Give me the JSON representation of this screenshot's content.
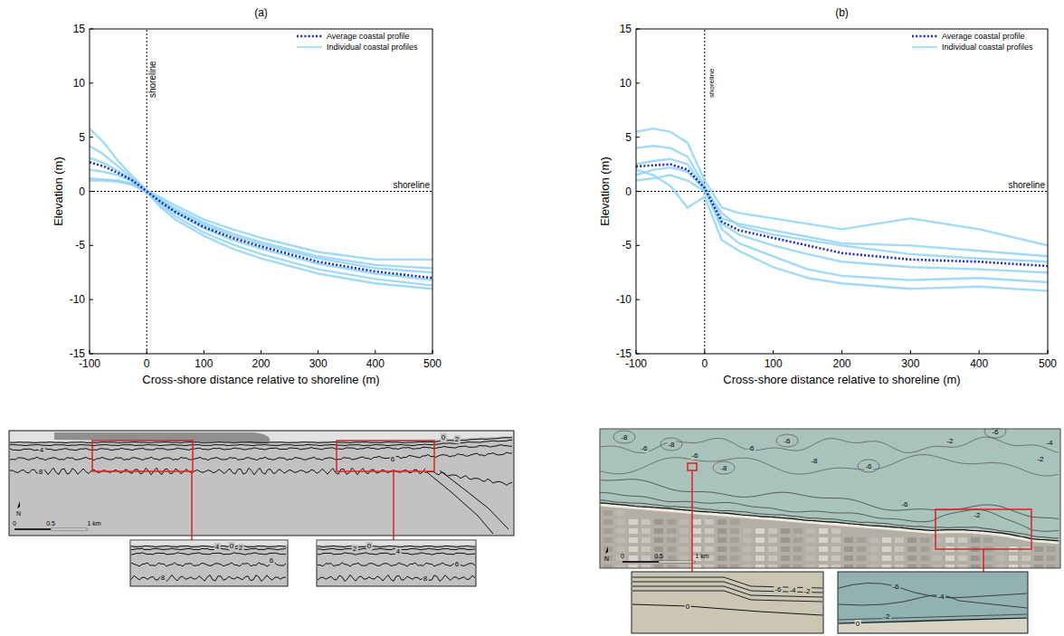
{
  "chart_data": [
    {
      "type": "line",
      "title": "(a)",
      "x_label": "Cross-shore distance relative to shoreline (m)",
      "y_label": "Elevation (m)",
      "x": [
        -100,
        -75,
        -50,
        -25,
        0,
        25,
        50,
        100,
        150,
        200,
        300,
        400,
        500
      ],
      "xlim": [
        -100,
        500
      ],
      "xticks": [
        -100,
        0,
        100,
        200,
        300,
        400,
        500
      ],
      "ylim": [
        -15,
        15
      ],
      "yticks": [
        -15,
        -10,
        -5,
        0,
        5,
        10,
        15
      ],
      "grid": false,
      "legend": "upper right",
      "annotations": [
        {
          "text": "shoreline",
          "x": 0
        },
        {
          "text": "shoreline",
          "y": 0
        }
      ],
      "series": [
        {
          "name": "Average coastal profile",
          "color": "#1a2bbf",
          "line_style": "dotted",
          "values": [
            2.7,
            2.3,
            1.7,
            1.0,
            0,
            -1.0,
            -1.9,
            -3.3,
            -4.3,
            -5.1,
            -6.5,
            -7.4,
            -8.0
          ]
        },
        {
          "name": "Individual coastal profiles",
          "color": "#8fd3f4",
          "line_style": "solid",
          "values": [
            [
              5.8,
              4.5,
              2.8,
              1.4,
              0.1,
              -0.6,
              -1.3,
              -2.6,
              -3.5,
              -4.3,
              -5.6,
              -6.3,
              -6.3
            ],
            [
              4.2,
              3.4,
              2.3,
              1.2,
              0,
              -0.8,
              -1.6,
              -2.9,
              -3.9,
              -4.7,
              -6.0,
              -6.8,
              -7.1
            ],
            [
              2.0,
              1.8,
              1.5,
              0.9,
              0,
              -1.1,
              -2.0,
              -3.4,
              -4.5,
              -5.3,
              -6.7,
              -7.6,
              -8.2
            ],
            [
              1.2,
              1.1,
              1.0,
              0.7,
              0,
              -1.3,
              -2.3,
              -3.8,
              -4.9,
              -5.8,
              -7.2,
              -8.1,
              -8.7
            ],
            [
              1.0,
              1.0,
              0.9,
              0.6,
              -0.1,
              -1.5,
              -2.6,
              -4.1,
              -5.3,
              -6.2,
              -7.6,
              -8.5,
              -9.0
            ],
            [
              3.1,
              2.6,
              1.9,
              1.0,
              0,
              -0.9,
              -1.8,
              -3.1,
              -4.1,
              -4.9,
              -6.2,
              -7.1,
              -7.5
            ]
          ]
        }
      ]
    },
    {
      "type": "line",
      "title": "(b)",
      "x_label": "Cross-shore distance relative to shoreline (m)",
      "y_label": "Elevation (m)",
      "x": [
        -100,
        -75,
        -50,
        -25,
        0,
        25,
        50,
        100,
        150,
        200,
        300,
        400,
        500
      ],
      "xlim": [
        -100,
        500
      ],
      "xticks": [
        -100,
        0,
        100,
        200,
        300,
        400,
        500
      ],
      "ylim": [
        -15,
        15
      ],
      "yticks": [
        -15,
        -10,
        -5,
        0,
        5,
        10,
        15
      ],
      "grid": false,
      "legend": "upper right",
      "annotations": [
        {
          "text": "shoreline",
          "x": 0
        },
        {
          "text": "shoreline",
          "y": 0
        }
      ],
      "series": [
        {
          "name": "Average coastal profile",
          "color": "#1a2bbf",
          "line_style": "dotted",
          "values": [
            2.3,
            2.4,
            2.5,
            2.0,
            0.3,
            -2.8,
            -3.6,
            -4.3,
            -5.0,
            -5.7,
            -6.3,
            -6.5,
            -6.9
          ]
        },
        {
          "name": "Individual coastal profiles",
          "color": "#8fd3f4",
          "line_style": "solid",
          "values": [
            [
              5.5,
              5.8,
              5.5,
              4.5,
              1.0,
              -1.5,
              -2.0,
              -2.5,
              -3.0,
              -3.5,
              -2.5,
              -3.5,
              -5.0
            ],
            [
              4.0,
              4.2,
              4.0,
              3.2,
              0.5,
              -2.5,
              -3.0,
              -3.6,
              -4.2,
              -4.8,
              -5.0,
              -5.5,
              -6.0
            ],
            [
              1.0,
              1.2,
              1.5,
              1.0,
              0,
              -3.0,
              -4.0,
              -5.0,
              -5.8,
              -6.5,
              -7.0,
              -7.2,
              -7.5
            ],
            [
              2.0,
              1.5,
              0.5,
              -1.5,
              -0.5,
              -4.5,
              -5.5,
              -7.0,
              -8.0,
              -8.5,
              -9.0,
              -8.8,
              -9.2
            ],
            [
              2.5,
              2.8,
              3.0,
              2.5,
              0.3,
              -2.0,
              -3.2,
              -4.0,
              -4.5,
              -5.0,
              -5.8,
              -6.2,
              -6.5
            ],
            [
              1.5,
              2.0,
              2.2,
              1.8,
              0.2,
              -3.5,
              -4.8,
              -6.0,
              -7.2,
              -7.8,
              -8.2,
              -8.0,
              -8.4
            ]
          ]
        }
      ]
    }
  ],
  "maps": [
    {
      "north": "N",
      "scale_labels": [
        "0",
        "0.5",
        "1 km"
      ],
      "contour_labels": [
        "0",
        "2",
        "4",
        "6",
        "8"
      ],
      "insets": [
        {
          "contour_labels": [
            "4",
            "0",
            "2",
            "6",
            "8"
          ]
        },
        {
          "contour_labels": [
            "2",
            "0",
            "4",
            "6",
            "8"
          ]
        }
      ]
    },
    {
      "north": "N",
      "scale_labels": [
        "0",
        "0.5",
        "1 km"
      ],
      "contour_labels": [
        "-8",
        "-6",
        "-8",
        "-6",
        "-8",
        "-6",
        "-6",
        "-8",
        "-6",
        "-2",
        "-6",
        "-4",
        "-2",
        "-6",
        "-2"
      ],
      "insets": [
        {
          "contour_labels": [
            "0",
            "-6",
            "-4",
            "-2"
          ]
        },
        {
          "contour_labels": [
            "-6",
            "-4",
            "0",
            "-2"
          ]
        }
      ]
    }
  ]
}
